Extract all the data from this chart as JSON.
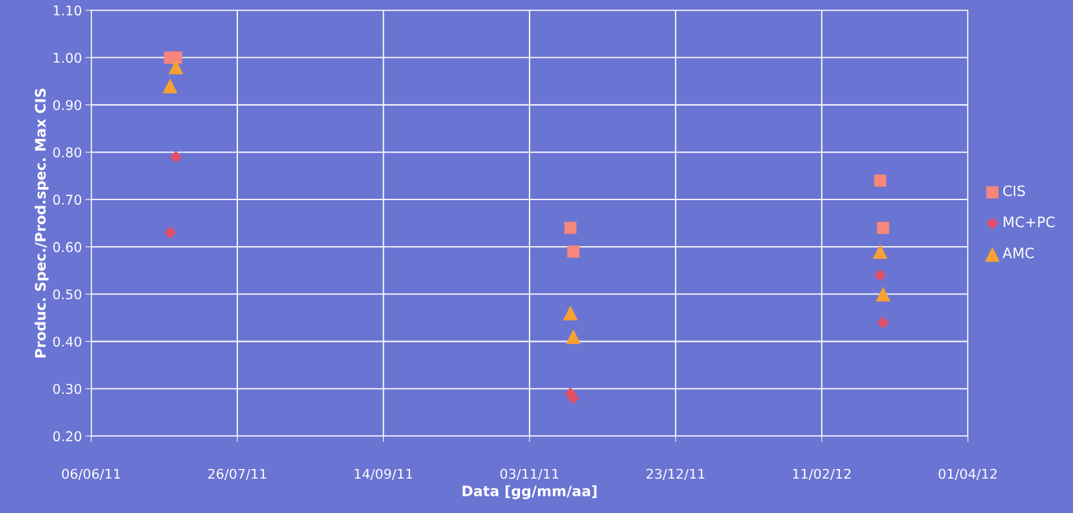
{
  "chart_data": {
    "type": "scatter",
    "xlabel": "Data [gg/mm/aa]",
    "ylabel": "Produc. Spec./Prod.spec. Max CIS",
    "series": [
      {
        "name": "CIS",
        "color": "#f6877a",
        "marker": "square",
        "x": [
          "2011-07-03",
          "2011-07-05",
          "2011-11-17",
          "2011-11-18",
          "2012-03-02",
          "2012-03-03"
        ],
        "values": [
          1.0,
          1.0,
          0.64,
          0.59,
          0.74,
          0.64
        ]
      },
      {
        "name": "MC+PC",
        "color": "#e0506a",
        "marker": "diamond",
        "x": [
          "2011-07-05",
          "2011-07-03",
          "2011-11-17",
          "2011-11-18",
          "2012-03-02",
          "2012-03-03"
        ],
        "values": [
          0.79,
          0.63,
          0.29,
          0.28,
          0.54,
          0.44
        ]
      },
      {
        "name": "AMC",
        "color": "#f7a133",
        "marker": "triangle",
        "x": [
          "2011-07-05",
          "2011-07-03",
          "2011-11-17",
          "2011-11-18",
          "2012-03-02",
          "2012-03-03"
        ],
        "values": [
          0.98,
          0.94,
          0.46,
          0.41,
          0.59,
          0.5
        ]
      }
    ],
    "xlim": [
      "2011-06-06",
      "2012-04-01"
    ],
    "xticks": [
      {
        "value": "2011-06-06",
        "label": "06/06/11"
      },
      {
        "value": "2011-07-26",
        "label": "26/07/11"
      },
      {
        "value": "2011-09-14",
        "label": "14/09/11"
      },
      {
        "value": "2011-11-03",
        "label": "03/11/11"
      },
      {
        "value": "2011-12-23",
        "label": "23/12/11"
      },
      {
        "value": "2012-02-11",
        "label": "11/02/12"
      },
      {
        "value": "2012-04-01",
        "label": "01/04/12"
      }
    ],
    "ylim": [
      0.2,
      1.1
    ],
    "yticks": [
      {
        "value": 0.2,
        "label": "0.20"
      },
      {
        "value": 0.3,
        "label": "0.30"
      },
      {
        "value": 0.4,
        "label": "0.40"
      },
      {
        "value": 0.5,
        "label": "0.50"
      },
      {
        "value": 0.6,
        "label": "0.60"
      },
      {
        "value": 0.7,
        "label": "0.70"
      },
      {
        "value": 0.8,
        "label": "0.80"
      },
      {
        "value": 0.9,
        "label": "0.90"
      },
      {
        "value": 1.0,
        "label": "1.00"
      },
      {
        "value": 1.1,
        "label": "1.10"
      }
    ],
    "grid": true,
    "legend": "right"
  }
}
